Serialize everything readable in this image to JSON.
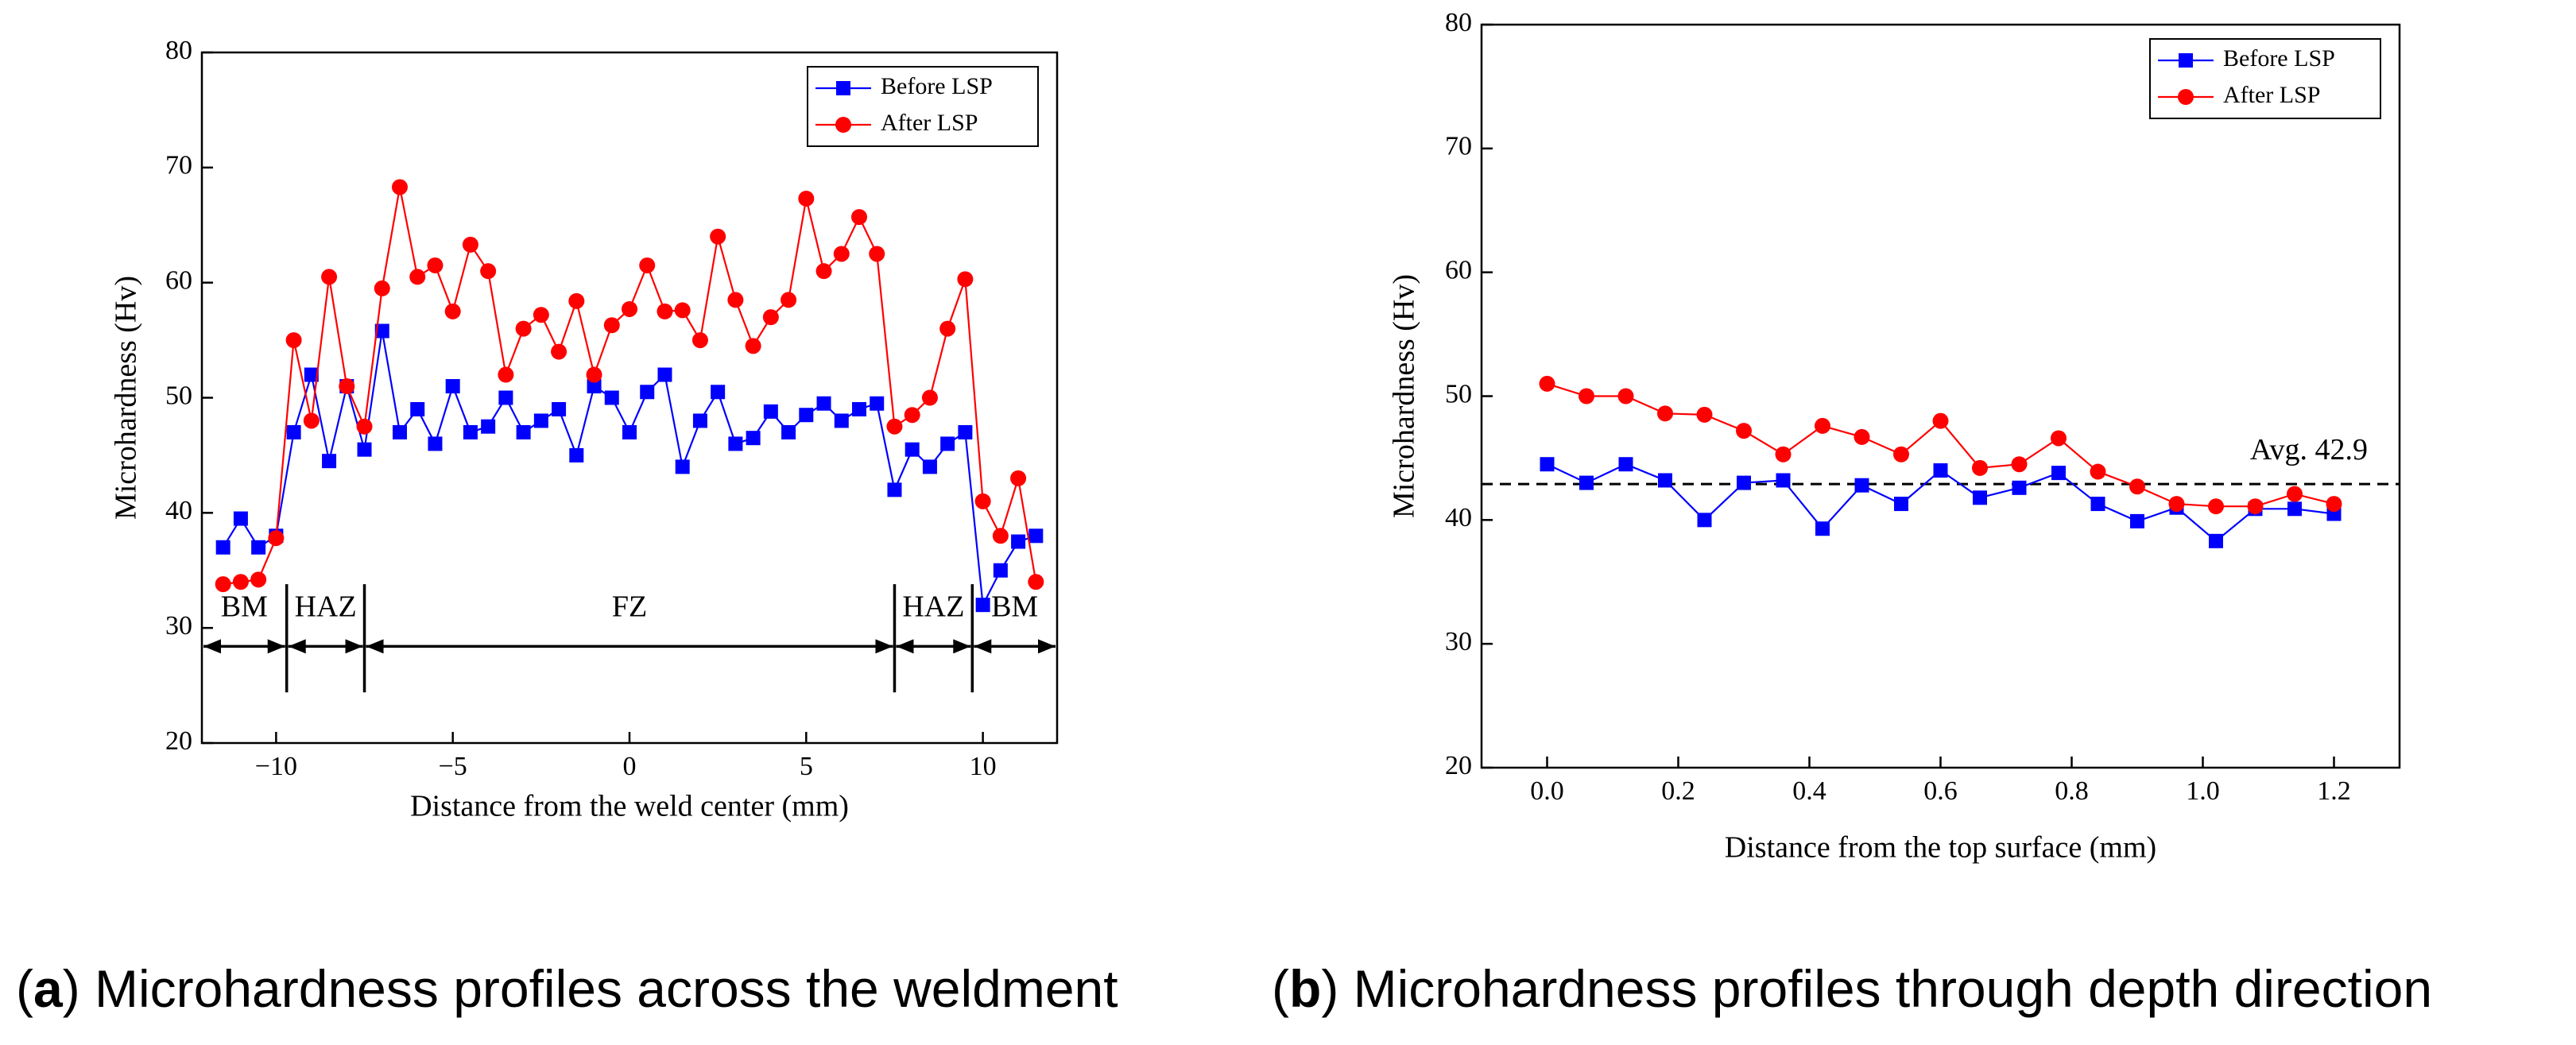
{
  "chart_data": [
    {
      "type": "line",
      "xlabel": "Distance from the weld center (mm)",
      "ylabel": "Microhardness (Hv)",
      "caption": [
        "(",
        "a",
        ") Microhardness profiles across the weldment"
      ],
      "x": [
        -11.5,
        -11,
        -10.5,
        -10,
        -9.5,
        -9,
        -8.5,
        -8,
        -7.5,
        -7,
        -6.5,
        -6,
        -5.5,
        -5,
        -4.5,
        -4,
        -3.5,
        -3,
        -2.5,
        -2,
        -1.5,
        -1,
        -0.5,
        0,
        0.5,
        1,
        1.5,
        2,
        2.5,
        3,
        3.5,
        4,
        4.5,
        5,
        5.5,
        6,
        6.5,
        7,
        7.5,
        8,
        8.5,
        9,
        9.5,
        10,
        10.5,
        11,
        11.5
      ],
      "series": [
        {
          "name": "Before LSP",
          "color": "#0000ff",
          "marker": "square",
          "values": [
            37,
            39.5,
            37,
            38,
            47,
            52,
            44.5,
            51,
            45.5,
            55.8,
            47,
            49,
            46,
            51,
            47,
            47.5,
            50,
            47,
            48,
            49,
            45,
            51,
            50,
            47,
            50.5,
            52,
            44,
            48,
            50.5,
            46,
            46.5,
            48.8,
            47,
            48.5,
            49.5,
            48,
            49,
            49.5,
            42,
            45.5,
            44,
            46,
            47,
            32,
            35,
            37.5,
            38
          ]
        },
        {
          "name": "After LSP",
          "color": "#ff0000",
          "marker": "circle",
          "values": [
            33.8,
            34,
            34.2,
            37.8,
            55,
            48,
            60.5,
            51,
            47.5,
            59.5,
            68.3,
            60.5,
            61.5,
            57.5,
            63.3,
            61,
            52,
            56,
            57.2,
            54,
            58.4,
            52,
            56.3,
            57.7,
            61.5,
            57.5,
            57.6,
            55,
            64,
            58.5,
            54.5,
            57,
            58.5,
            67.3,
            61,
            62.5,
            65.7,
            62.5,
            47.5,
            48.5,
            50,
            56,
            60.3,
            41,
            38,
            43,
            34
          ]
        }
      ],
      "xlim": [
        -12.1,
        12.1
      ],
      "xticks": [
        {
          "value": -10,
          "label": "−10"
        },
        {
          "value": -5,
          "label": "−5"
        },
        0,
        5,
        10
      ],
      "ylim": [
        20,
        80
      ],
      "yticks": [
        20,
        30,
        40,
        50,
        60,
        70,
        80
      ],
      "legend": "upper right",
      "zones": [
        {
          "label": "BM",
          "from": -12.1,
          "to": -9.7
        },
        {
          "label": "HAZ",
          "from": -9.7,
          "to": -7.5
        },
        {
          "label": "FZ",
          "from": -7.5,
          "to": 7.5
        },
        {
          "label": "HAZ",
          "from": 7.5,
          "to": 9.7
        },
        {
          "label": "BM",
          "from": 9.7,
          "to": 12.1
        }
      ]
    },
    {
      "type": "line",
      "xlabel": "Distance from the top surface (mm)",
      "ylabel": "Microhardness (Hv)",
      "caption": [
        "(",
        "b",
        ") Microhardness profiles through depth direction"
      ],
      "x": [
        0,
        0.06,
        0.12,
        0.18,
        0.24,
        0.3,
        0.36,
        0.42,
        0.48,
        0.54,
        0.6,
        0.66,
        0.72,
        0.78,
        0.84,
        0.9,
        0.96,
        1.02,
        1.08,
        1.14,
        1.2
      ],
      "series": [
        {
          "name": "Before LSP",
          "color": "#0000ff",
          "marker": "square",
          "values": [
            44.5,
            43,
            44.5,
            43.2,
            40,
            43,
            43.2,
            39.3,
            42.8,
            41.3,
            44,
            41.8,
            42.6,
            43.8,
            41.3,
            39.9,
            41,
            38.3,
            40.9,
            40.9,
            40.5
          ]
        },
        {
          "name": "After LSP",
          "color": "#ff0000",
          "marker": "circle",
          "values": [
            51,
            50,
            50,
            48.6,
            48.5,
            47.2,
            45.3,
            47.6,
            46.7,
            45.3,
            48,
            44.2,
            44.5,
            46.6,
            43.9,
            42.7,
            41.3,
            41.1,
            41.1,
            42.1,
            41.3
          ]
        }
      ],
      "xlim": [
        -0.1,
        1.3
      ],
      "xticks": [
        {
          "value": 0,
          "label": "0.0"
        },
        0.2,
        0.4,
        0.6,
        0.8,
        {
          "value": 1,
          "label": "1.0"
        },
        1.2
      ],
      "ylim": [
        20,
        80
      ],
      "yticks": [
        20,
        30,
        40,
        50,
        60,
        70,
        80
      ],
      "legend": "upper right",
      "reference_line": {
        "value": 42.9,
        "label": "Avg. 42.9"
      }
    }
  ]
}
